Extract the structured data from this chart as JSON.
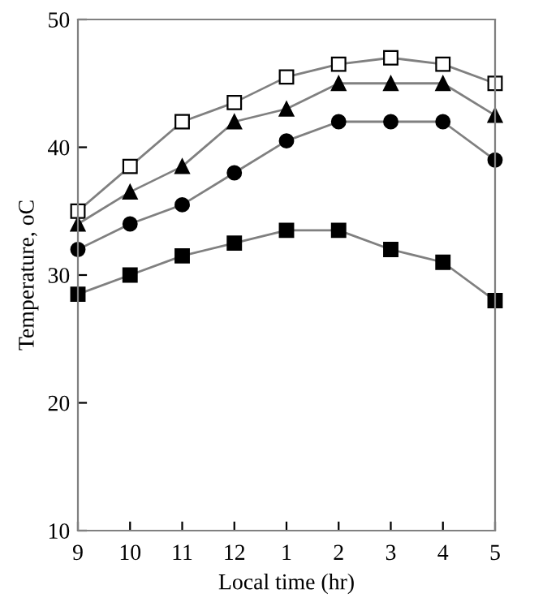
{
  "chart_data": {
    "type": "line",
    "xlabel": "Local time (hr)",
    "ylabel": "Temperature, oC",
    "categories": [
      "9",
      "10",
      "11",
      "12",
      "1",
      "2",
      "3",
      "4",
      "5"
    ],
    "series": [
      {
        "color": "#ffffff",
        "marker": "square",
        "values": [
          35,
          38.5,
          42,
          43.5,
          45.5,
          46.5,
          47,
          46.5,
          45
        ]
      },
      {
        "color": "#000000",
        "marker": "triangle",
        "values": [
          34,
          36.5,
          38.5,
          42,
          43,
          45,
          45,
          45,
          42.5
        ]
      },
      {
        "color": "#000000",
        "marker": "circle",
        "values": [
          32,
          34,
          35.5,
          38,
          40.5,
          42,
          42,
          42,
          39
        ]
      },
      {
        "color": "#000000",
        "marker": "square",
        "values": [
          28.5,
          30,
          31.5,
          32.5,
          33.5,
          33.5,
          32,
          31,
          28
        ]
      }
    ],
    "ylim": [
      10,
      50
    ],
    "yticks": [
      10,
      20,
      30,
      40,
      50
    ],
    "grid": false,
    "line_style": "solid"
  }
}
